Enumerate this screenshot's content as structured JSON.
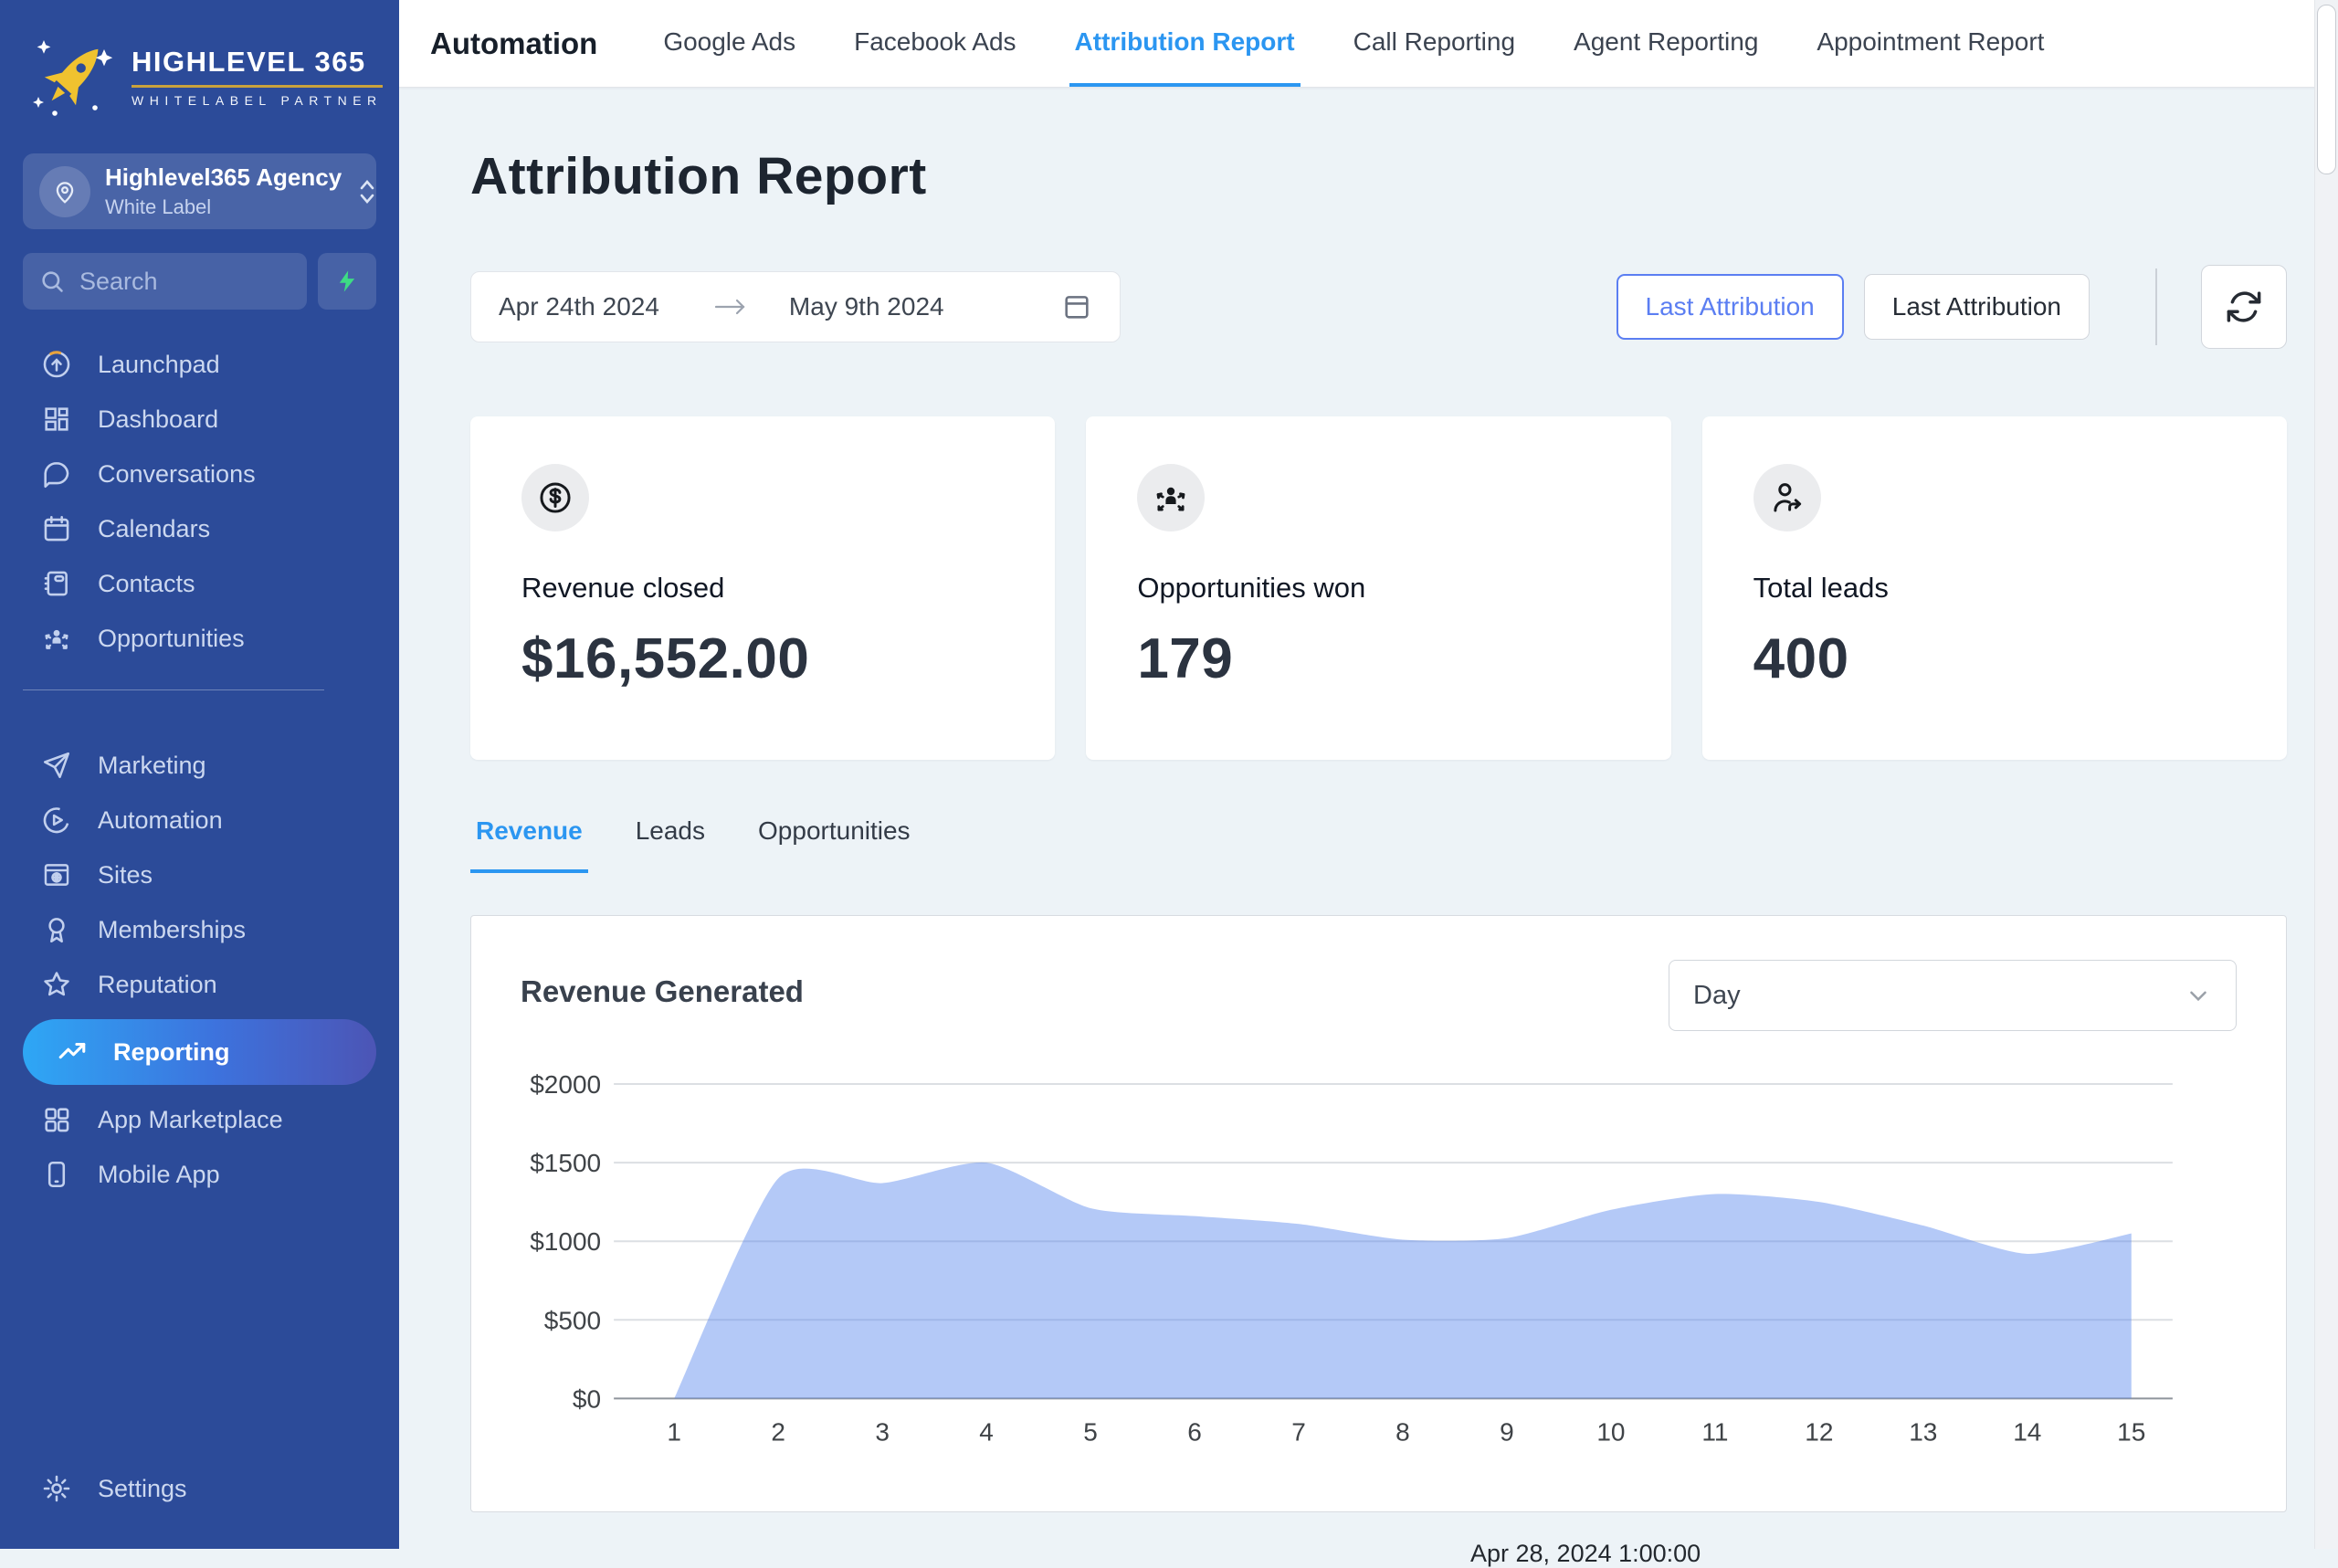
{
  "sidebar": {
    "logo": {
      "title": "HIGHLEVEL 365",
      "subtitle": "WHITELABEL PARTNER"
    },
    "agency": {
      "name": "Highlevel365 Agency",
      "type": "White Label"
    },
    "search": {
      "placeholder": "Search"
    },
    "menu_primary": [
      {
        "icon": "launchpad-icon",
        "label": "Launchpad"
      },
      {
        "icon": "dashboard-icon",
        "label": "Dashboard"
      },
      {
        "icon": "conversations-icon",
        "label": "Conversations"
      },
      {
        "icon": "calendars-icon",
        "label": "Calendars"
      },
      {
        "icon": "contacts-icon",
        "label": "Contacts"
      },
      {
        "icon": "opportunities-icon",
        "label": "Opportunities"
      }
    ],
    "menu_secondary": [
      {
        "icon": "marketing-icon",
        "label": "Marketing"
      },
      {
        "icon": "automation-icon",
        "label": "Automation"
      },
      {
        "icon": "sites-icon",
        "label": "Sites"
      },
      {
        "icon": "memberships-icon",
        "label": "Memberships"
      },
      {
        "icon": "reputation-icon",
        "label": "Reputation"
      },
      {
        "icon": "reporting-icon",
        "label": "Reporting",
        "active": true
      },
      {
        "icon": "app-marketplace-icon",
        "label": "App Marketplace"
      },
      {
        "icon": "mobile-app-icon",
        "label": "Mobile App"
      }
    ],
    "settings_label": "Settings"
  },
  "topbar": {
    "title": "Automation",
    "tabs": [
      {
        "label": "Google Ads",
        "active": false
      },
      {
        "label": "Facebook Ads",
        "active": false
      },
      {
        "label": "Attribution Report",
        "active": true
      },
      {
        "label": "Call Reporting",
        "active": false
      },
      {
        "label": "Agent Reporting",
        "active": false
      },
      {
        "label": "Appointment Report",
        "active": false
      }
    ]
  },
  "page": {
    "title": "Attribution Report",
    "date_range": {
      "start": "Apr 24th 2024",
      "end": "May 9th 2024"
    },
    "attribution_buttons": [
      {
        "label": "Last Attribution",
        "active": true
      },
      {
        "label": "Last Attribution",
        "active": false
      }
    ],
    "stats": [
      {
        "icon": "dollar-circle-icon",
        "label": "Revenue closed",
        "value": "$16,552.00"
      },
      {
        "icon": "opportunities-won-icon",
        "label": "Opportunities won",
        "value": "179"
      },
      {
        "icon": "total-leads-icon",
        "label": "Total leads",
        "value": "400"
      }
    ],
    "tabs": [
      {
        "label": "Revenue",
        "active": true
      },
      {
        "label": "Leads",
        "active": false
      },
      {
        "label": "Opportunities",
        "active": false
      }
    ],
    "clipped_bottom_text": "Apr 28, 2024 1:00:00"
  },
  "chart_card": {
    "title": "Revenue Generated",
    "interval_select": {
      "value": "Day"
    }
  },
  "chart_data": {
    "type": "area",
    "title": "Revenue Generated",
    "x": [
      1,
      2,
      3,
      4,
      5,
      6,
      7,
      8,
      9,
      10,
      11,
      12,
      13,
      14,
      15
    ],
    "values": [
      0,
      1400,
      1370,
      1500,
      1210,
      1160,
      1110,
      1010,
      1020,
      1200,
      1300,
      1250,
      1100,
      920,
      1050
    ],
    "xlabel": "",
    "ylabel": "",
    "ylim": [
      0,
      2000
    ],
    "yticks": [
      {
        "v": 0,
        "label": "$0"
      },
      {
        "v": 500,
        "label": "$500"
      },
      {
        "v": 1000,
        "label": "$1000"
      },
      {
        "v": 1500,
        "label": "$1500"
      },
      {
        "v": 2000,
        "label": "$2000"
      }
    ],
    "grid": true,
    "legend": "none",
    "fill_color": "rgba(88,135,237,0.45)",
    "gridline_color": "#dcdfe3",
    "baseline_color": "#8f959c"
  },
  "colors": {
    "sidebar_bg": "#2c4b99",
    "active_pill_gradient": [
      "#2ea7f5",
      "#3d72dd",
      "#4c55b5"
    ],
    "accent_blue": "#2b96f1",
    "attr_button_blue": "#5b7ef2",
    "bolt_green": "#3ddc84",
    "logo_gold": "#f0c22f",
    "page_bg": "#edf3f7",
    "chart_fill": "#b4c9f7"
  }
}
